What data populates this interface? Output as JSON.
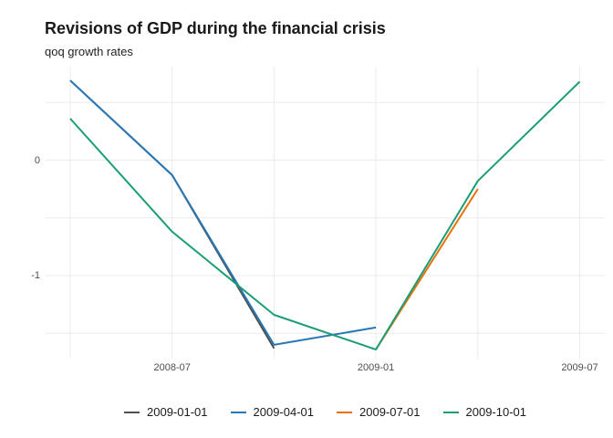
{
  "header": {
    "title": "Revisions of GDP during the financial crisis",
    "subtitle": "qoq growth rates"
  },
  "colors": {
    "background": "#ffffff",
    "gridline": "#ebebeb",
    "axis_text": "#4d4d4d",
    "title_text": "#1a1a1a"
  },
  "chart_data": {
    "type": "line",
    "title": "Revisions of GDP during the financial crisis",
    "subtitle": "qoq growth rates",
    "x": [
      "2008-04",
      "2008-07",
      "2008-10",
      "2009-01",
      "2009-04",
      "2009-07"
    ],
    "series": [
      {
        "name": "2009-01-01",
        "color": "#4f4f4f",
        "values": [
          0.69,
          -0.13,
          -1.63,
          null,
          null,
          null
        ]
      },
      {
        "name": "2009-04-01",
        "color": "#2878b5",
        "values": [
          0.69,
          -0.13,
          -1.6,
          -1.45,
          null,
          null
        ]
      },
      {
        "name": "2009-07-01",
        "color": "#e8710c",
        "values": [
          null,
          null,
          null,
          -1.64,
          -0.25,
          null
        ]
      },
      {
        "name": "2009-10-01",
        "color": "#1b9e77",
        "values": [
          0.36,
          -0.62,
          -1.34,
          -1.64,
          -0.18,
          0.68
        ]
      }
    ],
    "x_ticks": [
      {
        "index": 1,
        "label": "2008-07"
      },
      {
        "index": 3,
        "label": "2009-01"
      },
      {
        "index": 5,
        "label": "2009-07"
      }
    ],
    "y_ticks": [
      {
        "value": 0,
        "label": "0"
      },
      {
        "value": -1,
        "label": "-1"
      }
    ],
    "y_gridlines": [
      0.5,
      0,
      -0.5,
      -1,
      -1.5
    ],
    "xlabel": "",
    "ylabel": "",
    "ylim": [
      -1.72,
      0.81
    ],
    "grid": true,
    "legend_position": "bottom"
  },
  "legend": {
    "items": [
      "2009-01-01",
      "2009-04-01",
      "2009-07-01",
      "2009-10-01"
    ]
  }
}
